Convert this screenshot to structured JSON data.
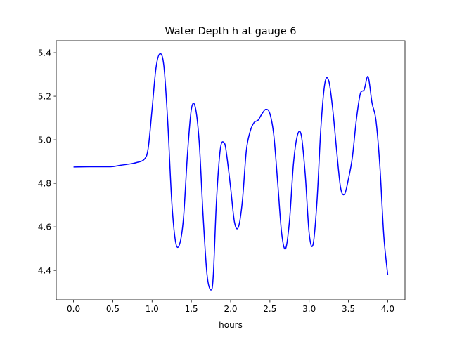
{
  "chart_data": {
    "type": "line",
    "title": "Water Depth h at gauge 6",
    "xlabel": "hours",
    "ylabel": "",
    "xlim": [
      -0.22,
      4.22
    ],
    "ylim": [
      4.265,
      5.455
    ],
    "xticks": [
      0.0,
      0.5,
      1.0,
      1.5,
      2.0,
      2.5,
      3.0,
      3.5,
      4.0
    ],
    "xtick_labels": [
      "0.0",
      "0.5",
      "1.0",
      "1.5",
      "2.0",
      "2.5",
      "3.0",
      "3.5",
      "4.0"
    ],
    "yticks": [
      4.4,
      4.6,
      4.8,
      5.0,
      5.2,
      5.4
    ],
    "ytick_labels": [
      "4.4",
      "4.6",
      "4.8",
      "5.0",
      "5.2",
      "5.4"
    ],
    "grid": false,
    "series": [
      {
        "color": "#0000ff",
        "x": [
          0.0,
          0.2,
          0.4,
          0.5,
          0.6,
          0.7,
          0.8,
          0.9,
          0.95,
          1.0,
          1.05,
          1.1,
          1.15,
          1.2,
          1.25,
          1.3,
          1.35,
          1.4,
          1.45,
          1.5,
          1.55,
          1.6,
          1.65,
          1.7,
          1.75,
          1.78,
          1.82,
          1.87,
          1.92,
          1.95,
          2.0,
          2.05,
          2.1,
          2.15,
          2.2,
          2.25,
          2.3,
          2.35,
          2.4,
          2.45,
          2.5,
          2.55,
          2.6,
          2.65,
          2.7,
          2.75,
          2.8,
          2.85,
          2.9,
          2.95,
          3.0,
          3.05,
          3.1,
          3.15,
          3.2,
          3.25,
          3.3,
          3.35,
          3.4,
          3.45,
          3.5,
          3.55,
          3.6,
          3.65,
          3.7,
          3.75,
          3.8,
          3.85,
          3.9,
          3.95,
          4.0
        ],
        "y": [
          4.875,
          4.876,
          4.876,
          4.877,
          4.883,
          4.888,
          4.895,
          4.91,
          4.96,
          5.14,
          5.33,
          5.395,
          5.34,
          5.08,
          4.72,
          4.53,
          4.52,
          4.64,
          4.93,
          5.14,
          5.15,
          4.99,
          4.65,
          4.38,
          4.31,
          4.38,
          4.72,
          4.96,
          4.985,
          4.93,
          4.78,
          4.62,
          4.6,
          4.72,
          4.95,
          5.04,
          5.08,
          5.09,
          5.12,
          5.14,
          5.12,
          5.02,
          4.8,
          4.57,
          4.5,
          4.63,
          4.89,
          5.02,
          5.02,
          4.84,
          4.57,
          4.52,
          4.72,
          5.06,
          5.26,
          5.27,
          5.14,
          4.95,
          4.78,
          4.75,
          4.82,
          4.92,
          5.09,
          5.21,
          5.23,
          5.29,
          5.17,
          5.09,
          4.88,
          4.56,
          4.38
        ]
      }
    ]
  }
}
